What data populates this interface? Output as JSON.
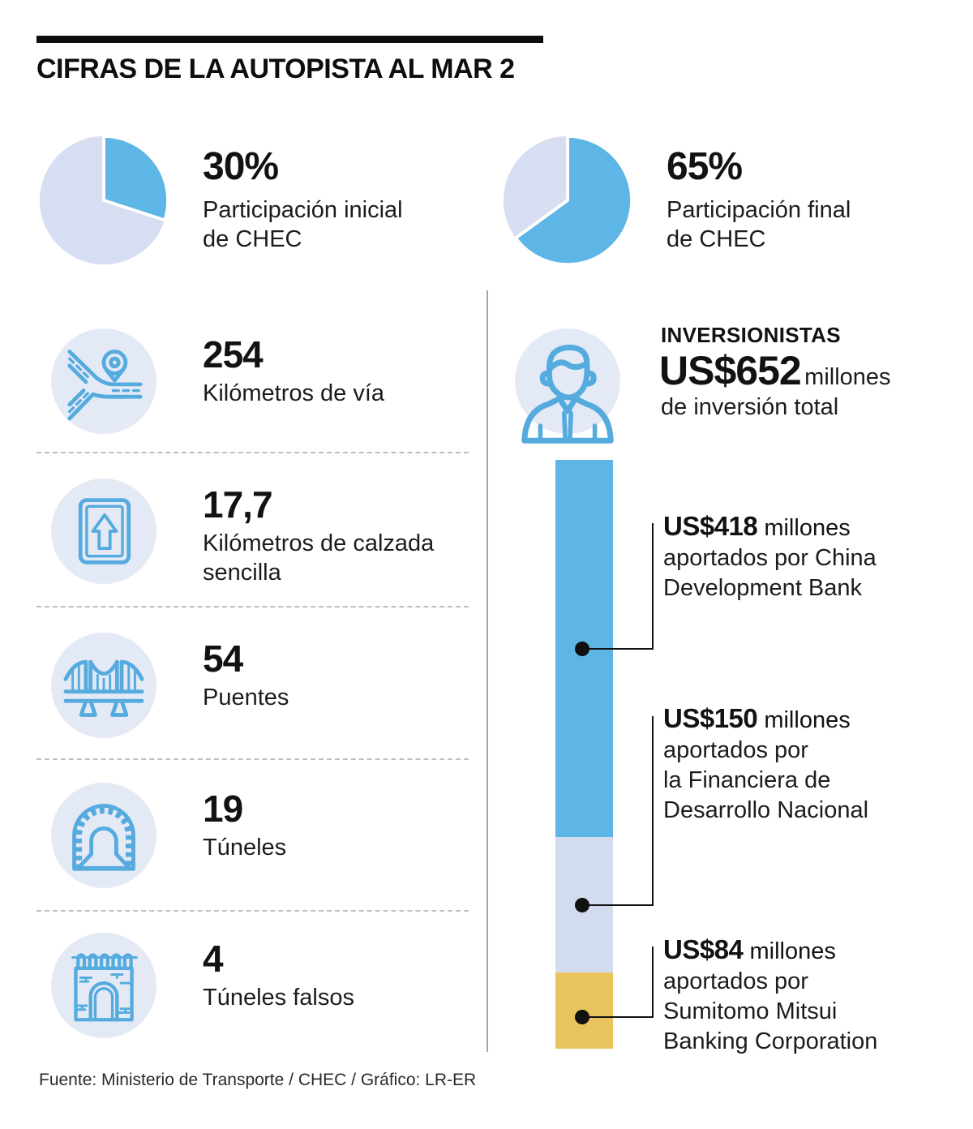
{
  "title": "CIFRAS DE LA AUTOPISTA AL MAR 2",
  "colors": {
    "accent_blue": "#5eb6e7",
    "pie_light": "#d8def1",
    "icon_circle_bg": "#e4e9f6",
    "bar_lavender": "#d3dcef",
    "bar_gold": "#e9c35b",
    "icon_stroke": "#55abde"
  },
  "participation": [
    {
      "percent": "30%",
      "label": "Participación inicial",
      "label2": "de CHEC"
    },
    {
      "percent": "65%",
      "label": "Participación final",
      "label2": "de CHEC"
    }
  ],
  "stats": [
    {
      "icon": "road-junction-icon",
      "value": "254",
      "label": "Kilómetros de vía"
    },
    {
      "icon": "one-way-sign-icon",
      "value": "17,7",
      "label": "Kilómetros de calzada sencilla"
    },
    {
      "icon": "bridge-icon",
      "value": "54",
      "label": "Puentes"
    },
    {
      "icon": "tunnel-icon",
      "value": "19",
      "label": "Túneles"
    },
    {
      "icon": "false-tunnel-icon",
      "value": "4",
      "label": "Túneles falsos"
    }
  ],
  "investors": {
    "heading": "INVERSIONISTAS",
    "total_amount": "US$652",
    "total_unit": "millones",
    "total_sub": "de inversión total",
    "contributions": [
      {
        "amount": "US$418",
        "unit": "millones",
        "value": 418,
        "color": "#5eb6e7",
        "lines": [
          "aportados por China",
          "Development Bank"
        ]
      },
      {
        "amount": "US$150",
        "unit": "millones",
        "value": 150,
        "color": "#d3dcef",
        "lines": [
          "aportados por",
          "la Financiera de",
          "Desarrollo Nacional"
        ]
      },
      {
        "amount": "US$84",
        "unit": "millones",
        "value": 84,
        "color": "#e9c35b",
        "lines": [
          "aportados por",
          "Sumitomo Mitsui",
          "Banking Corporation"
        ]
      }
    ]
  },
  "source": "Fuente: Ministerio de Transporte / CHEC / Gráfico: LR-ER",
  "chart_data": [
    {
      "type": "pie",
      "title": "Participación inicial de CHEC",
      "labels": [
        "CHEC",
        "Otros"
      ],
      "values": [
        30,
        70
      ],
      "colors": [
        "#5eb6e7",
        "#d8def1"
      ],
      "unit": "%"
    },
    {
      "type": "pie",
      "title": "Participación final de CHEC",
      "labels": [
        "CHEC",
        "Otros"
      ],
      "values": [
        65,
        35
      ],
      "colors": [
        "#5eb6e7",
        "#d8def1"
      ],
      "unit": "%"
    },
    {
      "type": "bar",
      "stacked": true,
      "title": "Inversionistas: US$652 millones de inversión total",
      "categories": [
        "Inversión total"
      ],
      "series": [
        {
          "name": "China Development Bank",
          "values": [
            418
          ],
          "color": "#5eb6e7"
        },
        {
          "name": "Financiera de Desarrollo Nacional",
          "values": [
            150
          ],
          "color": "#d3dcef"
        },
        {
          "name": "Sumitomo Mitsui Banking Corporation",
          "values": [
            84
          ],
          "color": "#e9c35b"
        }
      ],
      "unit": "US$ millones",
      "total": 652
    }
  ]
}
